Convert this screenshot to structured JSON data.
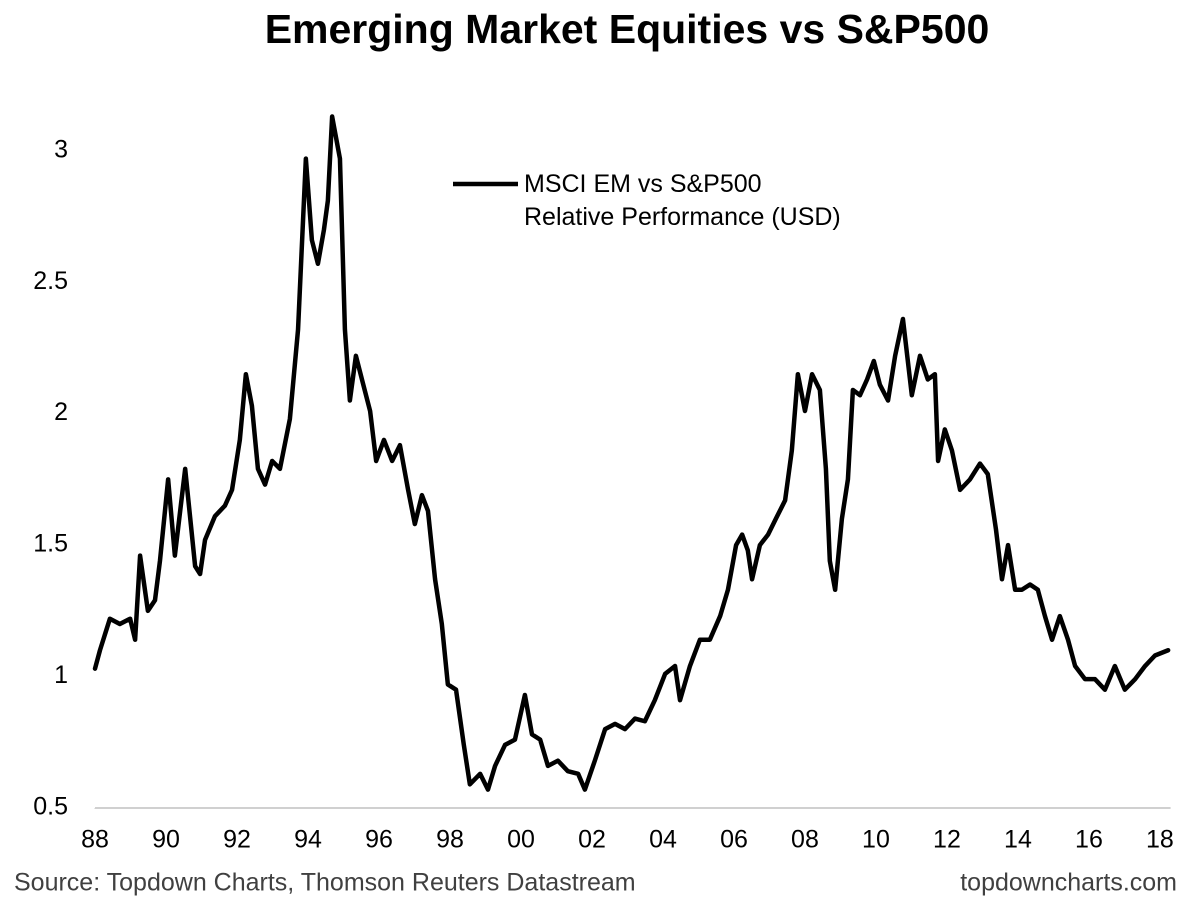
{
  "chart_data": {
    "type": "line",
    "title": "Emerging Market Equities vs S&P500",
    "source": "Source: Topdown Charts, Thomson Reuters Datastream",
    "credit": "topdowncharts.com",
    "xlim": [
      1988,
      2018.3
    ],
    "xticks": [
      {
        "value": 1988,
        "label": "88"
      },
      {
        "value": 1990,
        "label": "90"
      },
      {
        "value": 1992,
        "label": "92"
      },
      {
        "value": 1994,
        "label": "94"
      },
      {
        "value": 1996,
        "label": "96"
      },
      {
        "value": 1998,
        "label": "98"
      },
      {
        "value": 2000,
        "label": "00"
      },
      {
        "value": 2002,
        "label": "02"
      },
      {
        "value": 2004,
        "label": "04"
      },
      {
        "value": 2006,
        "label": "06"
      },
      {
        "value": 2008,
        "label": "08"
      },
      {
        "value": 2010,
        "label": "10"
      },
      {
        "value": 2012,
        "label": "12"
      },
      {
        "value": 2014,
        "label": "14"
      },
      {
        "value": 2016,
        "label": "16"
      },
      {
        "value": 2018,
        "label": "18"
      }
    ],
    "ylim": [
      0.5,
      3.25
    ],
    "yticks": [
      0.5,
      1,
      1.5,
      2,
      2.5,
      3
    ],
    "grid": false,
    "legend": "top-center",
    "x": [
      1988.0,
      1988.14,
      1988.28,
      1988.42,
      1988.7,
      1988.99,
      1989.13,
      1989.27,
      1989.49,
      1989.69,
      1989.83,
      1990.06,
      1990.25,
      1990.54,
      1990.82,
      1990.96,
      1991.1,
      1991.38,
      1991.66,
      1991.86,
      1992.08,
      1992.25,
      1992.42,
      1992.59,
      1992.79,
      1992.99,
      1993.21,
      1993.49,
      1993.72,
      1993.94,
      1994.11,
      1994.28,
      1994.45,
      1994.56,
      1994.68,
      1994.9,
      1995.04,
      1995.18,
      1995.35,
      1995.52,
      1995.75,
      1995.92,
      1996.14,
      1996.37,
      1996.59,
      1996.82,
      1997.01,
      1997.21,
      1997.38,
      1997.58,
      1997.77,
      1997.94,
      1998.17,
      1998.39,
      1998.56,
      1998.85,
      1999.07,
      1999.27,
      1999.55,
      1999.83,
      2000.11,
      2000.31,
      2000.54,
      2000.76,
      2001.04,
      2001.32,
      2001.61,
      2001.8,
      2002.08,
      2002.37,
      2002.65,
      2002.93,
      2003.21,
      2003.49,
      2003.77,
      2004.06,
      2004.34,
      2004.48,
      2004.76,
      2005.04,
      2005.32,
      2005.61,
      2005.83,
      2006.06,
      2006.23,
      2006.39,
      2006.51,
      2006.73,
      2006.96,
      2007.18,
      2007.44,
      2007.63,
      2007.8,
      2008.0,
      2008.2,
      2008.42,
      2008.59,
      2008.7,
      2008.85,
      2009.04,
      2009.21,
      2009.35,
      2009.55,
      2009.75,
      2009.94,
      2010.11,
      2010.34,
      2010.54,
      2010.76,
      2011.01,
      2011.24,
      2011.46,
      2011.66,
      2011.75,
      2011.94,
      2012.14,
      2012.37,
      2012.65,
      2012.93,
      2013.15,
      2013.38,
      2013.55,
      2013.72,
      2013.92,
      2014.11,
      2014.34,
      2014.56,
      2014.76,
      2014.96,
      2015.18,
      2015.41,
      2015.61,
      2015.89,
      2016.17,
      2016.45,
      2016.73,
      2017.01,
      2017.3,
      2017.58,
      2017.86,
      2018.23
    ],
    "series": [
      {
        "name": "MSCI EM vs S&P500\nRelative Performance (USD)",
        "color": "#000000",
        "values": [
          1.03,
          1.1,
          1.16,
          1.22,
          1.2,
          1.22,
          1.14,
          1.46,
          1.25,
          1.29,
          1.44,
          1.75,
          1.46,
          1.79,
          1.42,
          1.39,
          1.52,
          1.61,
          1.65,
          1.71,
          1.9,
          2.15,
          2.03,
          1.79,
          1.73,
          1.82,
          1.79,
          1.98,
          2.32,
          2.97,
          2.66,
          2.57,
          2.7,
          2.81,
          3.13,
          2.97,
          2.32,
          2.05,
          2.22,
          2.13,
          2.01,
          1.82,
          1.9,
          1.82,
          1.88,
          1.71,
          1.58,
          1.69,
          1.63,
          1.37,
          1.2,
          0.97,
          0.95,
          0.74,
          0.59,
          0.63,
          0.57,
          0.66,
          0.74,
          0.76,
          0.93,
          0.78,
          0.76,
          0.66,
          0.68,
          0.64,
          0.63,
          0.57,
          0.68,
          0.8,
          0.82,
          0.8,
          0.84,
          0.83,
          0.91,
          1.01,
          1.04,
          0.91,
          1.04,
          1.14,
          1.14,
          1.23,
          1.33,
          1.5,
          1.54,
          1.48,
          1.37,
          1.5,
          1.54,
          1.6,
          1.67,
          1.86,
          2.15,
          2.01,
          2.15,
          2.09,
          1.79,
          1.44,
          1.33,
          1.6,
          1.75,
          2.09,
          2.07,
          2.13,
          2.2,
          2.11,
          2.05,
          2.22,
          2.36,
          2.07,
          2.22,
          2.13,
          2.15,
          1.82,
          1.94,
          1.86,
          1.71,
          1.75,
          1.81,
          1.77,
          1.56,
          1.37,
          1.5,
          1.33,
          1.33,
          1.35,
          1.33,
          1.23,
          1.14,
          1.23,
          1.14,
          1.04,
          0.99,
          0.99,
          0.95,
          1.04,
          0.95,
          0.99,
          1.04,
          1.08,
          1.1
        ]
      }
    ]
  }
}
